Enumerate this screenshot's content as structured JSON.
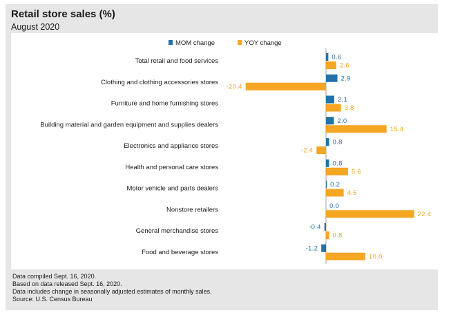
{
  "title": "Retail store sales (%)",
  "subtitle": "August 2020",
  "footer": {
    "line1": "Data compiled Sept. 16, 2020.",
    "line2": "Based on data released Sept. 16, 2020.",
    "line3": "Data includes change in seasonally adjusted estimates of monthly sales.",
    "line4": "Source: U.S. Census Bureau"
  },
  "colors": {
    "mom": "#2272a8",
    "yoy": "#f5a623",
    "axis": "#888888",
    "text": "#1a1a1a",
    "background": "#e6e6e6"
  },
  "chart_data": {
    "type": "bar",
    "orientation": "horizontal",
    "legend_position": "top",
    "categories": [
      "Total retail and food services",
      "Clothing and clothing accessories stores",
      "Furniture and home furnishing stores",
      "Building material and garden equipment and supplies dealers",
      "Electronics and appliance stores",
      "Health and personal care stores",
      "Motor vehicle and parts dealers",
      "Nonstore retailers",
      "General merchandise stores",
      "Food and beverage stores"
    ],
    "series": [
      {
        "name": "MOM change",
        "values": [
          0.6,
          2.9,
          2.1,
          2.0,
          0.8,
          0.8,
          0.2,
          0.0,
          -0.4,
          -1.2
        ],
        "labels": [
          "0.6",
          "2.9",
          "2.1",
          "2.0",
          "0.8",
          "0.8",
          "0.2",
          "0.0",
          "-0.4",
          "-1.2"
        ]
      },
      {
        "name": "YOY change",
        "values": [
          2.6,
          -20.4,
          3.8,
          15.4,
          -2.4,
          5.6,
          4.5,
          22.4,
          0.8,
          10.0
        ],
        "labels": [
          "2.6",
          "-20.4",
          "3.8",
          "15.4",
          "-2.4",
          "5.6",
          "4.5",
          "22.4",
          "0.8",
          "10.0"
        ]
      }
    ]
  }
}
